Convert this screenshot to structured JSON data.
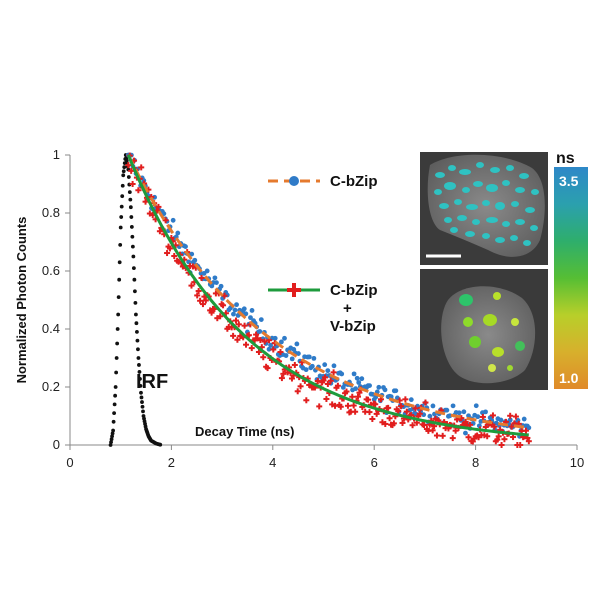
{
  "colors": {
    "series_orange": "#E57A2E",
    "series_blue": "#2F7BC8",
    "series_green": "#1E9B3C",
    "series_red": "#E11E1E",
    "irf": "#111111"
  },
  "colorbar": {
    "unit": "ns",
    "max_label": "3.5",
    "min_label": "1.0",
    "range": [
      1.0,
      3.5
    ],
    "gradient": [
      "#E08A2A",
      "#D7B02C",
      "#B8CF2A",
      "#56BE34",
      "#2EAE6C",
      "#2BA0AE",
      "#2E88C8"
    ]
  },
  "microscopy": {
    "top_panel_label": "C-bZip",
    "bottom_panel_label": "C-bZip + V-bZip",
    "top_spot_color": "#2FC2C2",
    "bottom_spot_color": "#7ED321"
  },
  "chart_data": {
    "type": "scatter",
    "xlabel": "Decay Time (ns)",
    "ylabel": "Normalized  Photon  Counts",
    "xlim": [
      0,
      10
    ],
    "ylim": [
      0,
      1
    ],
    "x_ticks": [
      "0",
      "2",
      "4",
      "6",
      "8",
      "10"
    ],
    "y_ticks": [
      "0",
      "0.2",
      "0.4",
      "0.6",
      "0.8",
      "1"
    ],
    "grid": false,
    "legend_position": "center-right",
    "legend": [
      "C-bZip",
      "C-bZip\n+\nV-bZip"
    ],
    "annotations": [
      "IRF"
    ],
    "series": [
      {
        "name": "C-bZip",
        "style": "blue circles with orange dashed fit",
        "fit": {
          "model": "exponential",
          "t0": 1.15,
          "tau": 2.8
        },
        "x_range": [
          1.15,
          9.05
        ],
        "noise": 0.02,
        "points": 260
      },
      {
        "name": "C-bZip + V-bZip",
        "style": "red crosses with green solid fit",
        "fit": {
          "model": "exponential",
          "t0": 1.15,
          "tau": 2.35
        },
        "x_range": [
          1.15,
          9.05
        ],
        "noise": 0.028,
        "points": 280
      },
      {
        "name": "IRF",
        "style": "black dotted",
        "samples": [
          [
            0.8,
            0.0
          ],
          [
            0.85,
            0.05
          ],
          [
            0.9,
            0.2
          ],
          [
            0.95,
            0.45
          ],
          [
            1.0,
            0.75
          ],
          [
            1.05,
            0.93
          ],
          [
            1.1,
            1.0
          ],
          [
            1.15,
            0.95
          ],
          [
            1.2,
            0.82
          ],
          [
            1.25,
            0.65
          ],
          [
            1.3,
            0.45
          ],
          [
            1.35,
            0.3
          ],
          [
            1.4,
            0.18
          ],
          [
            1.45,
            0.1
          ],
          [
            1.5,
            0.055
          ],
          [
            1.55,
            0.03
          ],
          [
            1.6,
            0.015
          ],
          [
            1.7,
            0.005
          ],
          [
            1.8,
            0.0
          ]
        ]
      }
    ]
  }
}
